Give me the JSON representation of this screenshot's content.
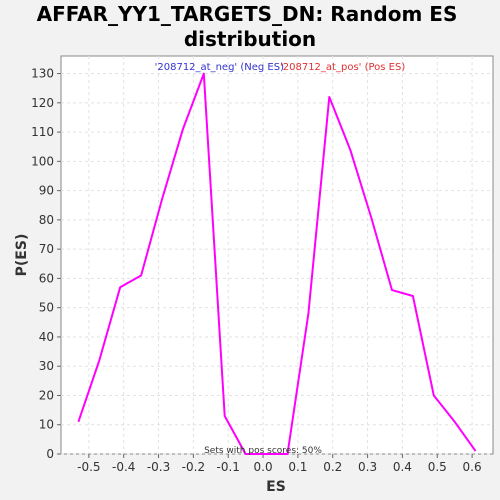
{
  "chart_data": {
    "type": "line",
    "title_line1": "AFFAR_YY1_TARGETS_DN: Random ES",
    "title_line2": "distribution",
    "xlabel": "ES",
    "ylabel": "P(ES)",
    "xlim": [
      -0.58,
      0.66
    ],
    "ylim": [
      0,
      136
    ],
    "x_ticks": [
      -0.5,
      -0.4,
      -0.3,
      -0.2,
      -0.1,
      0.0,
      0.1,
      0.2,
      0.3,
      0.4,
      0.5,
      0.6
    ],
    "x_tick_labels": [
      "-0.5",
      "-0.4",
      "-0.3",
      "-0.2",
      "-0.1",
      "0.0",
      "0.1",
      "0.2",
      "0.3",
      "0.4",
      "0.5",
      "0.6"
    ],
    "y_ticks": [
      0,
      10,
      20,
      30,
      40,
      50,
      60,
      70,
      80,
      90,
      100,
      110,
      120,
      130
    ],
    "y_tick_labels": [
      "0",
      "10",
      "20",
      "30",
      "40",
      "50",
      "60",
      "70",
      "80",
      "90",
      "100",
      "110",
      "120",
      "130"
    ],
    "grid": true,
    "line_color": "#ff00ff",
    "x": [
      -0.53,
      -0.47,
      -0.41,
      -0.35,
      -0.29,
      -0.23,
      -0.17,
      -0.11,
      -0.05,
      0.01,
      0.07,
      0.13,
      0.19,
      0.25,
      0.31,
      0.37,
      0.43,
      0.49,
      0.55,
      0.61
    ],
    "y": [
      11,
      32,
      57,
      61,
      87,
      111,
      130,
      13,
      0,
      0,
      0,
      48,
      122,
      104,
      81,
      56,
      54,
      20,
      11,
      1
    ],
    "legend": [
      {
        "text": "'208712_at_neg' (Neg ES)",
        "color": "#3333cc"
      },
      {
        "text": "'208712_at_pos' (Pos ES)",
        "color": "#e03030"
      }
    ],
    "annotation": "Sets with pos scores: 50%"
  }
}
